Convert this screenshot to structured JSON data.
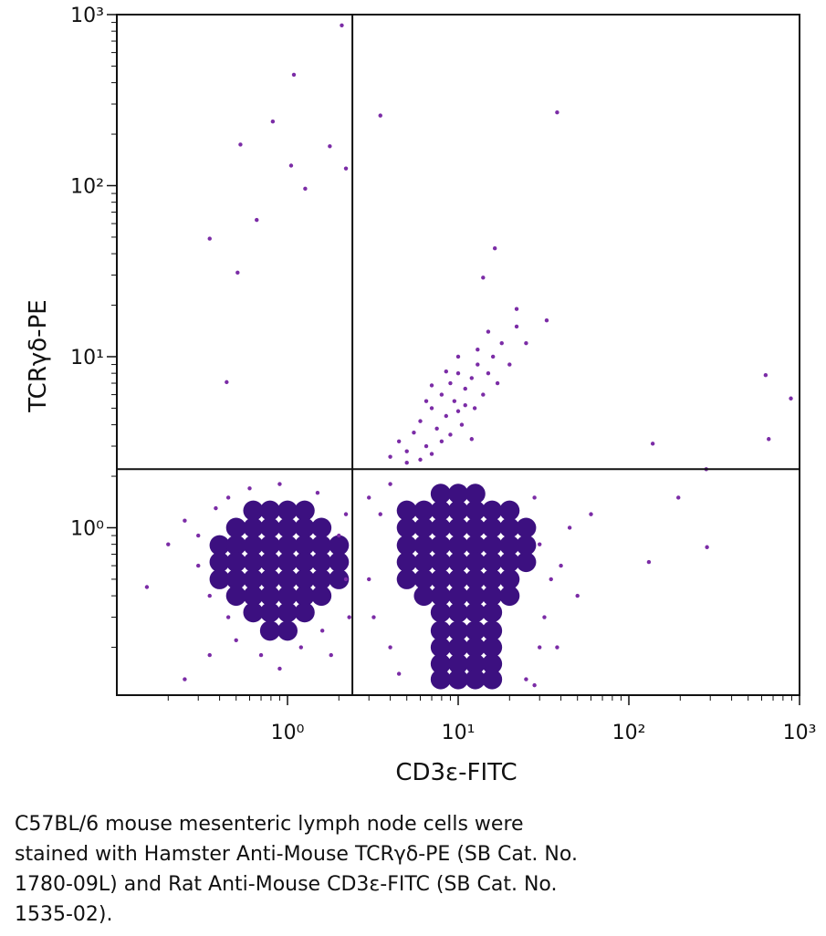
{
  "chart_data": {
    "type": "scatter",
    "xlabel": "CD3ε-FITC",
    "ylabel": "TCRγδ-PE",
    "xscale": "log",
    "yscale": "log",
    "xlim": [
      0.1,
      1000
    ],
    "ylim": [
      0.105,
      1000
    ],
    "xticks": [
      {
        "value": 1,
        "label": "10⁰"
      },
      {
        "value": 10,
        "label": "10¹"
      },
      {
        "value": 100,
        "label": "10²"
      },
      {
        "value": 1000,
        "label": "10³"
      }
    ],
    "yticks": [
      {
        "value": 1,
        "label": "10⁰"
      },
      {
        "value": 10,
        "label": "10¹"
      },
      {
        "value": 100,
        "label": "10²"
      },
      {
        "value": 1000,
        "label": "10³"
      }
    ],
    "gate": {
      "x": 2.4,
      "y": 2.2
    },
    "series": [
      {
        "color": "#3c1080",
        "x": [
          0.63,
          0.79,
          1.0,
          1.26,
          0.5,
          0.63,
          0.79,
          1.0,
          1.26,
          1.58,
          0.4,
          0.5,
          0.63,
          0.79,
          1.0,
          1.26,
          1.58,
          2.0,
          0.4,
          0.5,
          0.63,
          0.79,
          1.0,
          1.26,
          1.58,
          2.0,
          0.4,
          0.5,
          0.63,
          0.79,
          1.0,
          1.26,
          1.58,
          2.0,
          0.5,
          0.63,
          0.79,
          1.0,
          1.26,
          1.58,
          0.63,
          0.79,
          1.0,
          1.26,
          0.79,
          1.0,
          7.9,
          10,
          12.6,
          5,
          6.3,
          7.9,
          10,
          12.6,
          15.8,
          20,
          5,
          6.3,
          7.9,
          10,
          12.6,
          15.8,
          20,
          25,
          5,
          6.3,
          7.9,
          10,
          12.6,
          15.8,
          20,
          25,
          5,
          6.3,
          7.9,
          10,
          12.6,
          15.8,
          20,
          25,
          5,
          6.3,
          7.9,
          10,
          12.6,
          15.8,
          20,
          6.3,
          7.9,
          10,
          12.6,
          15.8,
          20,
          7.9,
          10,
          12.6,
          15.8,
          7.9,
          10,
          12.6,
          15.8,
          7.9,
          10,
          12.6,
          15.8,
          7.9,
          10,
          12.6,
          15.8,
          7.9,
          10,
          12.6,
          15.8
        ],
        "values": [
          1.26,
          1.26,
          1.26,
          1.26,
          1.0,
          1.0,
          1.0,
          1.0,
          1.0,
          1.0,
          0.79,
          0.79,
          0.79,
          0.79,
          0.79,
          0.79,
          0.79,
          0.79,
          0.63,
          0.63,
          0.63,
          0.63,
          0.63,
          0.63,
          0.63,
          0.63,
          0.5,
          0.5,
          0.5,
          0.5,
          0.5,
          0.5,
          0.5,
          0.5,
          0.4,
          0.4,
          0.4,
          0.4,
          0.4,
          0.4,
          0.32,
          0.32,
          0.32,
          0.32,
          0.25,
          0.25,
          1.58,
          1.58,
          1.58,
          1.26,
          1.26,
          1.26,
          1.26,
          1.26,
          1.26,
          1.26,
          1.0,
          1.0,
          1.0,
          1.0,
          1.0,
          1.0,
          1.0,
          1.0,
          0.79,
          0.79,
          0.79,
          0.79,
          0.79,
          0.79,
          0.79,
          0.79,
          0.63,
          0.63,
          0.63,
          0.63,
          0.63,
          0.63,
          0.63,
          0.63,
          0.5,
          0.5,
          0.5,
          0.5,
          0.5,
          0.5,
          0.5,
          0.4,
          0.4,
          0.4,
          0.4,
          0.4,
          0.4,
          0.32,
          0.32,
          0.32,
          0.32,
          0.25,
          0.25,
          0.25,
          0.25,
          0.2,
          0.2,
          0.2,
          0.2,
          0.16,
          0.16,
          0.16,
          0.16,
          0.13,
          0.13,
          0.13,
          0.13
        ]
      },
      {
        "color": "#7b2ca6",
        "x": [
          4,
          4.5,
          5,
          5.5,
          6,
          6.5,
          7,
          7.5,
          8,
          8.5,
          9,
          9.5,
          10,
          10.5,
          11,
          12,
          12.5,
          13,
          14,
          15,
          16,
          17,
          18,
          20,
          5,
          6,
          7,
          8,
          9,
          10,
          11,
          12,
          13,
          15,
          22,
          25,
          7,
          8.5,
          6.5,
          10,
          0.3,
          0.25,
          0.35,
          0.3,
          0.45,
          0.6,
          0.9,
          1.5,
          2.2,
          2.2,
          2.3,
          0.45,
          0.5,
          0.7,
          0.9,
          1.2,
          1.6,
          0.2,
          0.15,
          0.35,
          0.25,
          1.8,
          2.0,
          0.38,
          3,
          3.5,
          3.2,
          4,
          4,
          3,
          30,
          35,
          28,
          32,
          40,
          45,
          30,
          25,
          4.5,
          28,
          50,
          60,
          38,
          2.08,
          1.09,
          0.82,
          3.5,
          38,
          0.53,
          1.77,
          1.05,
          2.2,
          1.27,
          0.66,
          0.35,
          0.51,
          16.4,
          14,
          633,
          890,
          660,
          138,
          284,
          195,
          287,
          131,
          0.44,
          33,
          22
        ],
        "values": [
          2.6,
          3.2,
          2.8,
          3.6,
          4.2,
          3,
          5,
          3.8,
          6,
          4.5,
          7,
          5.5,
          8,
          4,
          6.5,
          7.5,
          5,
          9,
          6,
          8,
          10,
          7,
          12,
          9,
          2.4,
          2.5,
          2.7,
          3.2,
          3.5,
          4.8,
          5.2,
          3.3,
          11,
          14,
          15,
          12,
          6.8,
          8.2,
          5.5,
          10,
          0.9,
          1.1,
          0.4,
          0.6,
          1.5,
          1.7,
          1.8,
          1.6,
          1.2,
          0.5,
          0.3,
          0.3,
          0.22,
          0.18,
          0.15,
          0.2,
          0.25,
          0.8,
          0.45,
          0.18,
          0.13,
          0.18,
          0.9,
          1.3,
          0.5,
          1.2,
          0.3,
          0.2,
          1.8,
          1.5,
          0.8,
          0.5,
          1.5,
          0.3,
          0.6,
          1.0,
          0.2,
          0.13,
          0.14,
          0.12,
          0.4,
          1.2,
          0.2,
          865,
          445,
          237,
          257,
          268,
          174,
          170,
          131,
          126,
          96,
          63,
          49,
          31,
          43,
          29,
          7.8,
          5.7,
          3.3,
          3.1,
          2.2,
          1.5,
          0.77,
          0.63,
          7.1,
          16.3,
          19
        ]
      }
    ],
    "caption": [
      "C57BL/6 mouse mesenteric lymph node cells were",
      "stained with Hamster Anti-Mouse TCRγδ-PE (SB Cat. No.",
      "1780-09L) and Rat Anti-Mouse CD3ε-FITC (SB Cat. No.",
      "1535-02)."
    ]
  }
}
